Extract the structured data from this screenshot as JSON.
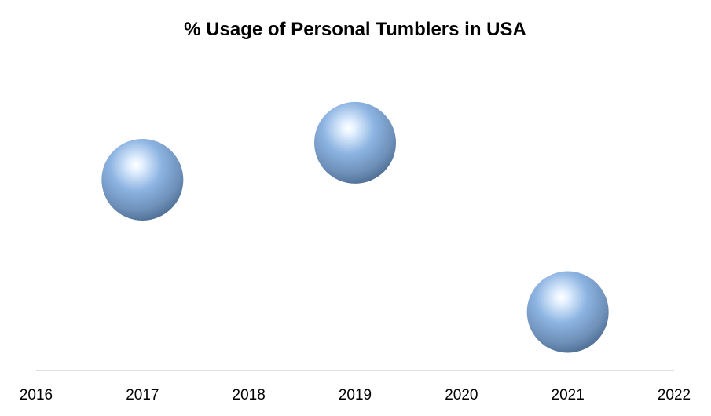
{
  "chart_data": {
    "type": "bubble",
    "title": "% Usage of Personal Tumblers in USA",
    "xlabel": "",
    "ylabel": "",
    "x_ticks": [
      2016,
      2017,
      2018,
      2019,
      2020,
      2021,
      2022
    ],
    "xlim": [
      2016,
      2022
    ],
    "ylim": [
      0,
      100
    ],
    "y_axis_visible": false,
    "grid": false,
    "legend": "none",
    "points": [
      {
        "x": 2017,
        "y": 62
      },
      {
        "x": 2019,
        "y": 74
      },
      {
        "x": 2021,
        "y": 19
      }
    ],
    "colors": {
      "bubble": "#8db4e2",
      "bubble_highlight": "#ffffff",
      "bubble_shadow": "#4f6f94",
      "axis": "#bfbfbf"
    }
  }
}
